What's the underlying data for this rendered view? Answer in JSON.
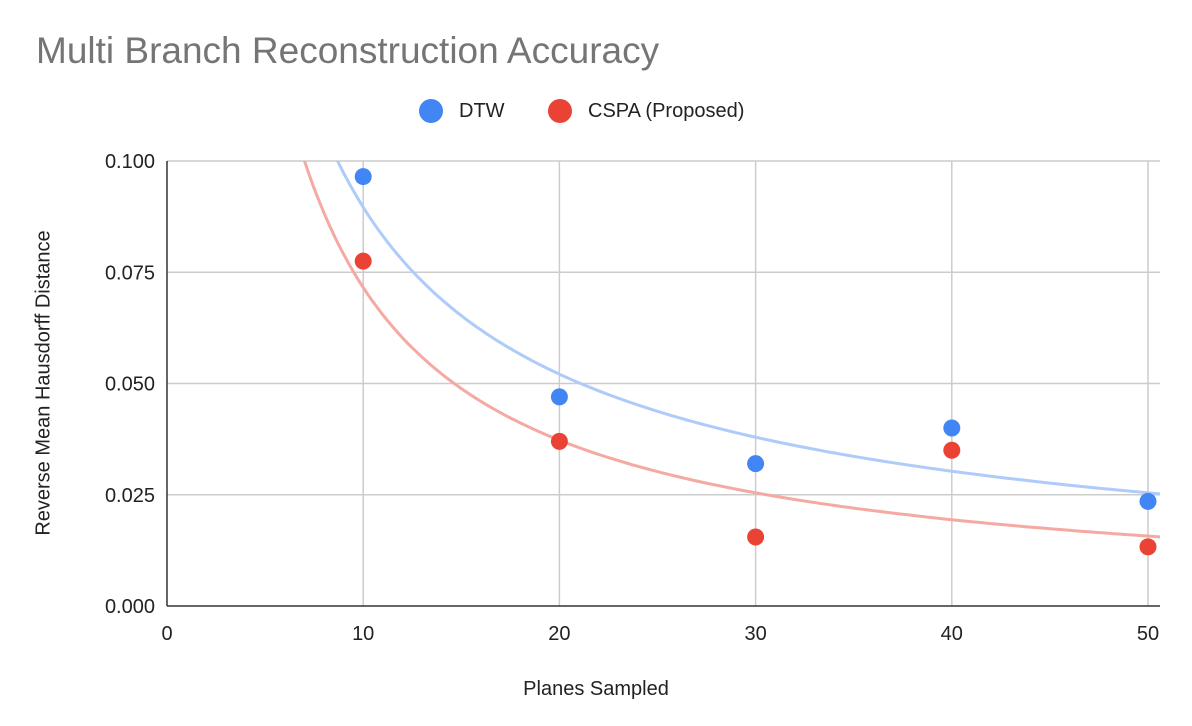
{
  "chart_data": {
    "type": "scatter",
    "title": "Multi Branch Reconstruction Accuracy",
    "xlabel": "Planes Sampled",
    "ylabel": "Reverse Mean Hausdorff Distance",
    "xlim": [
      0,
      51
    ],
    "ylim": [
      0,
      0.1
    ],
    "x_ticks": [
      "0",
      "10",
      "20",
      "30",
      "40",
      "50"
    ],
    "y_ticks": [
      "0.000",
      "0.025",
      "0.050",
      "0.075",
      "0.100"
    ],
    "grid": true,
    "legend_position": "top",
    "trendline": "power",
    "series": [
      {
        "name": "DTW",
        "color": "#4285f4",
        "trend_color": "#aecbfa",
        "x": [
          10,
          20,
          30,
          40,
          50
        ],
        "y": [
          0.0965,
          0.047,
          0.032,
          0.04,
          0.0235
        ]
      },
      {
        "name": "CSPA (Proposed)",
        "color": "#ea4335",
        "trend_color": "#f4a9a2",
        "x": [
          10,
          20,
          30,
          40,
          50
        ],
        "y": [
          0.0775,
          0.037,
          0.0155,
          0.035,
          0.0133
        ]
      }
    ]
  }
}
